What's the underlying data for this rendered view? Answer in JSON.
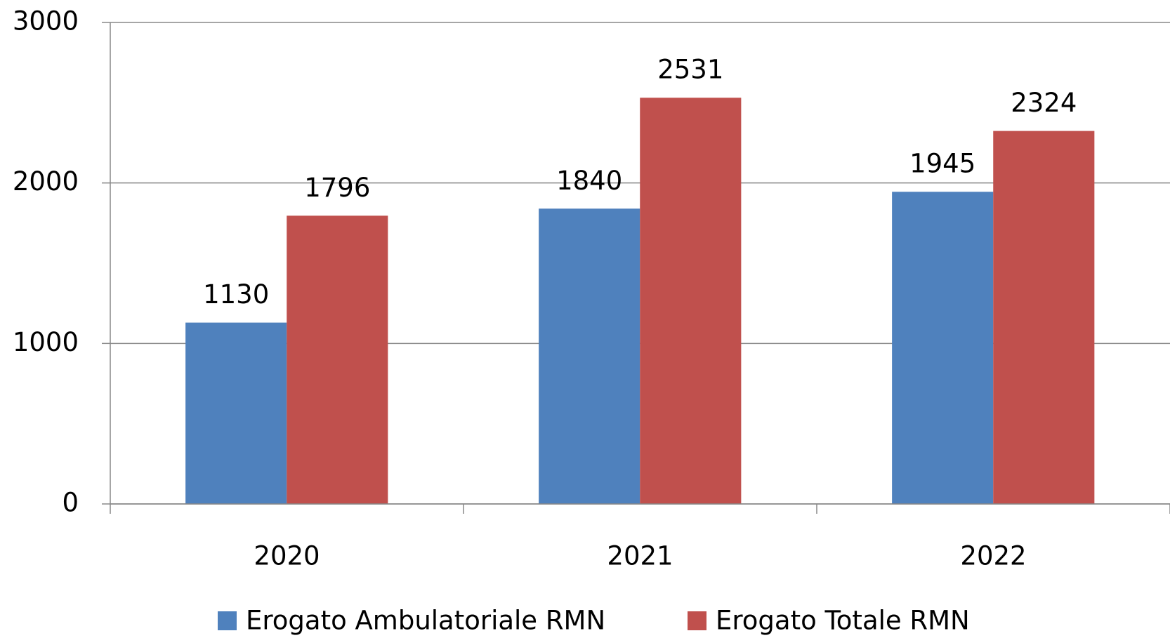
{
  "chart_data": {
    "type": "bar",
    "categories": [
      "2020",
      "2021",
      "2022"
    ],
    "series": [
      {
        "name": "Erogato Ambulatoriale RMN",
        "color": "#4f81bd",
        "values": [
          1130,
          1840,
          1945
        ]
      },
      {
        "name": "Erogato Totale RMN",
        "color": "#c0504d",
        "values": [
          1796,
          2531,
          2324
        ]
      }
    ],
    "ylim": [
      0,
      3000
    ],
    "yticks": [
      0,
      1000,
      2000,
      3000
    ],
    "grid": true,
    "legend": "bottom"
  }
}
